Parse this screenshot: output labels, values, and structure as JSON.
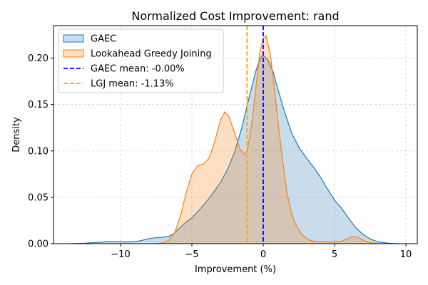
{
  "chart_data": {
    "type": "area",
    "title": "Normalized Cost Improvement: rand",
    "xlabel": "Improvement (%)",
    "ylabel": "Density",
    "xlim": [
      -14.7,
      10.8
    ],
    "ylim": [
      0,
      0.235
    ],
    "xticks": [
      -10,
      -5,
      0,
      5,
      10
    ],
    "xtick_labels": [
      "−10",
      "−5",
      "0",
      "5",
      "10"
    ],
    "yticks": [
      0,
      0.05,
      0.1,
      0.15,
      0.2
    ],
    "ytick_labels": [
      "0.00",
      "0.05",
      "0.10",
      "0.15",
      "0.20"
    ],
    "grid": true,
    "legend_position": "top-left",
    "series": [
      {
        "name": "GAEC",
        "line_color": "#1f77b4",
        "fill_color": "#1f77b4",
        "points": [
          [
            -13.5,
            0.0
          ],
          [
            -12.5,
            0.0005
          ],
          [
            -12,
            0.001
          ],
          [
            -11.5,
            0.0015
          ],
          [
            -11,
            0.002
          ],
          [
            -10.5,
            0.002
          ],
          [
            -10,
            0.002
          ],
          [
            -9.5,
            0.0018
          ],
          [
            -9,
            0.0022
          ],
          [
            -8.5,
            0.0035
          ],
          [
            -8,
            0.0055
          ],
          [
            -7.5,
            0.0065
          ],
          [
            -7,
            0.007
          ],
          [
            -6.6,
            0.008
          ],
          [
            -6.3,
            0.0105
          ],
          [
            -6,
            0.015
          ],
          [
            -5.5,
            0.022
          ],
          [
            -5,
            0.028
          ],
          [
            -4.5,
            0.036
          ],
          [
            -4,
            0.045
          ],
          [
            -3.5,
            0.055
          ],
          [
            -3,
            0.066
          ],
          [
            -2.5,
            0.08
          ],
          [
            -2,
            0.099
          ],
          [
            -1.5,
            0.125
          ],
          [
            -1,
            0.157
          ],
          [
            -0.5,
            0.187
          ],
          [
            -0.2,
            0.2
          ],
          [
            0,
            0.203
          ],
          [
            0.3,
            0.199
          ],
          [
            0.7,
            0.185
          ],
          [
            1,
            0.168
          ],
          [
            1.5,
            0.142
          ],
          [
            2,
            0.119
          ],
          [
            2.5,
            0.104
          ],
          [
            3,
            0.093
          ],
          [
            3.5,
            0.083
          ],
          [
            4,
            0.072
          ],
          [
            4.5,
            0.059
          ],
          [
            5,
            0.047
          ],
          [
            5.5,
            0.038
          ],
          [
            6,
            0.027
          ],
          [
            6.5,
            0.017
          ],
          [
            7,
            0.01
          ],
          [
            7.5,
            0.005
          ],
          [
            8,
            0.0022
          ],
          [
            8.5,
            0.001
          ],
          [
            9,
            0.0003
          ],
          [
            9.5,
            0.0
          ]
        ]
      },
      {
        "name": "Lookahead Greedy Joining",
        "line_color": "#ff7f0e",
        "fill_color": "#ff7f0e",
        "points": [
          [
            -7.4,
            0.0
          ],
          [
            -7,
            0.001
          ],
          [
            -6.6,
            0.004
          ],
          [
            -6.2,
            0.012
          ],
          [
            -5.8,
            0.03
          ],
          [
            -5.4,
            0.055
          ],
          [
            -5,
            0.075
          ],
          [
            -4.6,
            0.084
          ],
          [
            -4.2,
            0.086
          ],
          [
            -3.8,
            0.092
          ],
          [
            -3.4,
            0.11
          ],
          [
            -3,
            0.133
          ],
          [
            -2.7,
            0.142
          ],
          [
            -2.4,
            0.137
          ],
          [
            -2,
            0.119
          ],
          [
            -1.6,
            0.101
          ],
          [
            -1.35,
            0.096
          ],
          [
            -1.1,
            0.101
          ],
          [
            -0.8,
            0.13
          ],
          [
            -0.5,
            0.17
          ],
          [
            -0.25,
            0.205
          ],
          [
            0,
            0.221
          ],
          [
            0.2,
            0.224
          ],
          [
            0.5,
            0.204
          ],
          [
            0.8,
            0.165
          ],
          [
            1.1,
            0.123
          ],
          [
            1.4,
            0.085
          ],
          [
            1.7,
            0.052
          ],
          [
            2,
            0.032
          ],
          [
            2.3,
            0.02
          ],
          [
            2.7,
            0.01
          ],
          [
            3.2,
            0.004
          ],
          [
            3.7,
            0.0022
          ],
          [
            4.2,
            0.0018
          ],
          [
            4.8,
            0.0018
          ],
          [
            5.4,
            0.002
          ],
          [
            5.9,
            0.0055
          ],
          [
            6.3,
            0.008
          ],
          [
            6.7,
            0.0065
          ],
          [
            7.1,
            0.003
          ],
          [
            7.6,
            0.0008
          ],
          [
            8.1,
            0.0
          ]
        ]
      }
    ],
    "mean_lines": [
      {
        "name": "GAEC mean: -0.00%",
        "x": 0.0,
        "color": "#0000ff"
      },
      {
        "name": "LGJ mean: -1.13%",
        "x": -1.13,
        "color": "#ffa500"
      }
    ]
  }
}
